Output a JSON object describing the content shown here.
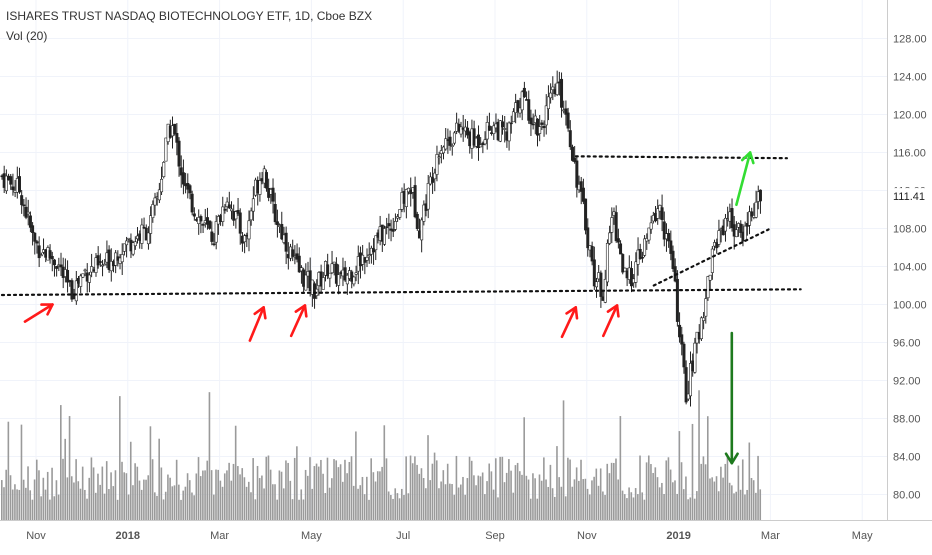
{
  "chart_data": {
    "type": "candlestick",
    "title": "ISHARES TRUST NASDAQ BIOTECHNOLOGY ETF, 1D, Cboe BZX",
    "indicator_label": "Vol (20)",
    "last_price_label": "111.41",
    "y_ticks": [
      "80.00",
      "84.00",
      "88.00",
      "92.00",
      "96.00",
      "100.00",
      "104.00",
      "108.00",
      "112.00",
      "116.00",
      "120.00",
      "124.00",
      "128.00"
    ],
    "ylim": [
      76.0,
      131.7
    ],
    "x_ticks": [
      {
        "label": "Nov",
        "month": 1
      },
      {
        "label": "2018",
        "month": 3
      },
      {
        "label": "Mar",
        "month": 5
      },
      {
        "label": "May",
        "month": 7
      },
      {
        "label": "Jul",
        "month": 9
      },
      {
        "label": "Sep",
        "month": 11
      },
      {
        "label": "Nov",
        "month": 13
      },
      {
        "label": "2019",
        "month": 15
      },
      {
        "label": "Mar",
        "month": 17
      },
      {
        "label": "May",
        "month": 19
      }
    ],
    "price_path": [
      [
        0.0,
        113.5
      ],
      [
        0.4,
        112.0
      ],
      [
        0.7,
        106.5
      ],
      [
        1.2,
        104.5
      ],
      [
        1.5,
        101.2
      ],
      [
        1.8,
        103.5
      ],
      [
        2.2,
        104.0
      ],
      [
        2.6,
        106.0
      ],
      [
        3.2,
        108.0
      ],
      [
        3.4,
        111.5
      ],
      [
        3.6,
        117.5
      ],
      [
        3.7,
        119.0
      ],
      [
        4.0,
        112.0
      ],
      [
        4.3,
        109.0
      ],
      [
        4.6,
        107.0
      ],
      [
        4.9,
        111.5
      ],
      [
        5.3,
        106.5
      ],
      [
        5.5,
        112.0
      ],
      [
        5.7,
        114.5
      ],
      [
        5.9,
        110.0
      ],
      [
        6.4,
        104.0
      ],
      [
        6.8,
        101.5
      ],
      [
        7.1,
        104.0
      ],
      [
        7.4,
        102.5
      ],
      [
        7.7,
        104.0
      ],
      [
        8.0,
        106.0
      ],
      [
        8.5,
        108.5
      ],
      [
        8.9,
        112.5
      ],
      [
        9.1,
        108.0
      ],
      [
        9.5,
        116.5
      ],
      [
        10.0,
        118.5
      ],
      [
        10.3,
        117.0
      ],
      [
        10.7,
        119.0
      ],
      [
        11.0,
        117.5
      ],
      [
        11.3,
        122.0
      ],
      [
        11.7,
        118.5
      ],
      [
        12.1,
        123.0
      ],
      [
        12.3,
        120.0
      ],
      [
        12.5,
        114.0
      ],
      [
        12.7,
        109.0
      ],
      [
        12.9,
        103.0
      ],
      [
        13.1,
        101.5
      ],
      [
        13.3,
        110.0
      ],
      [
        13.6,
        102.0
      ],
      [
        14.0,
        106.0
      ],
      [
        14.3,
        110.5
      ],
      [
        14.6,
        104.5
      ],
      [
        14.9,
        90.5
      ],
      [
        15.1,
        95.0
      ],
      [
        15.3,
        100.0
      ],
      [
        15.5,
        106.0
      ],
      [
        15.8,
        109.5
      ],
      [
        16.1,
        107.0
      ],
      [
        16.3,
        109.5
      ],
      [
        16.5,
        111.0
      ]
    ],
    "volume_seed": 7,
    "annotations": {
      "support_line": {
        "from": [
          0.0,
          101.0
        ],
        "to": [
          17.4,
          101.6
        ],
        "style": "dotted"
      },
      "resistance_line": {
        "from": [
          12.5,
          115.6
        ],
        "to": [
          17.1,
          115.4
        ],
        "style": "dotted"
      },
      "trend_line": {
        "from": [
          14.2,
          102.0
        ],
        "to": [
          16.7,
          107.9
        ],
        "style": "dotted"
      },
      "red_arrows": [
        {
          "tip": [
            1.1,
            100.0
          ],
          "tail": [
            0.5,
            98.2
          ]
        },
        {
          "tip": [
            5.7,
            99.7
          ],
          "tail": [
            5.4,
            96.2
          ]
        },
        {
          "tip": [
            6.6,
            99.9
          ],
          "tail": [
            6.3,
            96.7
          ]
        },
        {
          "tip": [
            12.5,
            99.7
          ],
          "tail": [
            12.2,
            96.6
          ]
        },
        {
          "tip": [
            13.4,
            99.9
          ],
          "tail": [
            13.1,
            96.7
          ]
        }
      ],
      "green_arrow_up": {
        "tip": [
          16.3,
          116.0
        ],
        "tail": [
          16.0,
          110.5
        ]
      },
      "green_arrow_down": {
        "tip": [
          15.9,
          83.3
        ],
        "tail": [
          15.9,
          97.0
        ]
      }
    }
  }
}
